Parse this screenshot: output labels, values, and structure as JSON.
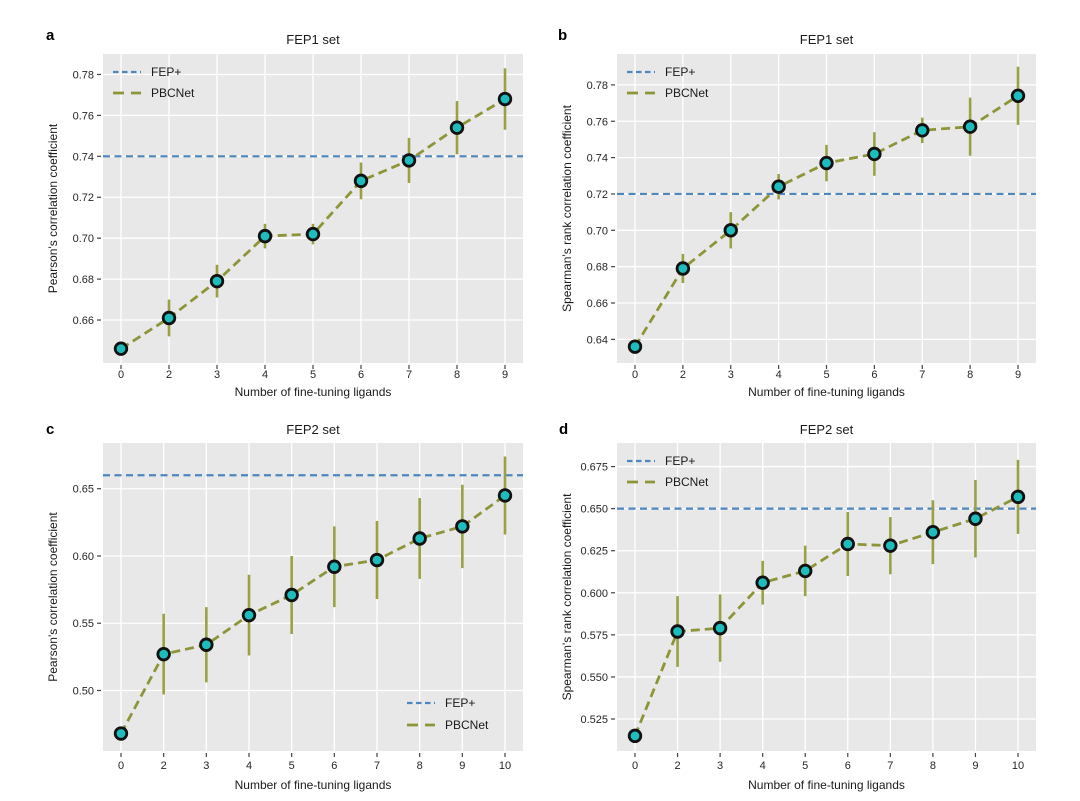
{
  "colors": {
    "fep_line": "#4e86bf",
    "pbcnet_line": "#8e9538",
    "error_bar": "#9aa145",
    "marker_fill": "#1ebdbd",
    "marker_edge": "#111111",
    "plot_bg": "#e8e8e8",
    "grid": "#ffffff",
    "tick": "#444444",
    "text": "#1a1a1a"
  },
  "chart_data": [
    {
      "type": "line",
      "panel_label": "a",
      "title": "FEP1 set",
      "xlabel": "Number of fine-tuning ligands",
      "ylabel": "Pearson's correlation coefficient",
      "x": [
        0,
        2,
        3,
        4,
        5,
        6,
        7,
        8,
        9
      ],
      "xtick_labels": [
        "0",
        "2",
        "3",
        "4",
        "5",
        "6",
        "7",
        "8",
        "9"
      ],
      "yticks": [
        0.66,
        0.68,
        0.7,
        0.72,
        0.74,
        0.76,
        0.78
      ],
      "ytick_labels": [
        "0.66",
        "0.68",
        "0.70",
        "0.72",
        "0.74",
        "0.76",
        "0.78"
      ],
      "ylim": [
        0.639,
        0.79
      ],
      "grid": true,
      "legend_position": "top-left",
      "series": [
        {
          "name": "FEP+",
          "type": "reference-line",
          "value": 0.74
        },
        {
          "name": "PBCNet",
          "type": "line-markers-errorbars",
          "values": [
            0.646,
            0.661,
            0.679,
            0.701,
            0.702,
            0.728,
            0.738,
            0.754,
            0.768
          ],
          "errors": [
            0,
            0.009,
            0.008,
            0.006,
            0.005,
            0.009,
            0.011,
            0.013,
            0.015
          ]
        }
      ]
    },
    {
      "type": "line",
      "panel_label": "b",
      "title": "FEP1 set",
      "xlabel": "Number of fine-tuning ligands",
      "ylabel": "Spearman's rank correlation coefficient",
      "x": [
        0,
        2,
        3,
        4,
        5,
        6,
        7,
        8,
        9
      ],
      "xtick_labels": [
        "0",
        "2",
        "3",
        "4",
        "5",
        "6",
        "7",
        "8",
        "9"
      ],
      "yticks": [
        0.64,
        0.66,
        0.68,
        0.7,
        0.72,
        0.74,
        0.76,
        0.78
      ],
      "ytick_labels": [
        "0.64",
        "0.66",
        "0.68",
        "0.70",
        "0.72",
        "0.74",
        "0.76",
        "0.78"
      ],
      "ylim": [
        0.627,
        0.797
      ],
      "grid": true,
      "legend_position": "top-left",
      "series": [
        {
          "name": "FEP+",
          "type": "reference-line",
          "value": 0.72
        },
        {
          "name": "PBCNet",
          "type": "line-markers-errorbars",
          "values": [
            0.636,
            0.679,
            0.7,
            0.724,
            0.737,
            0.742,
            0.755,
            0.757,
            0.774
          ],
          "errors": [
            0,
            0.008,
            0.01,
            0.007,
            0.01,
            0.012,
            0.007,
            0.016,
            0.016
          ]
        }
      ]
    },
    {
      "type": "line",
      "panel_label": "c",
      "title": "FEP2 set",
      "xlabel": "Number of fine-tuning ligands",
      "ylabel": "Pearson's correlation coefficient",
      "x": [
        0,
        2,
        3,
        4,
        5,
        6,
        7,
        8,
        9,
        10
      ],
      "xtick_labels": [
        "0",
        "2",
        "3",
        "4",
        "5",
        "6",
        "7",
        "8",
        "9",
        "10"
      ],
      "yticks": [
        0.5,
        0.55,
        0.6,
        0.65
      ],
      "ytick_labels": [
        "0.50",
        "0.55",
        "0.60",
        "0.65"
      ],
      "ylim": [
        0.455,
        0.684
      ],
      "grid": true,
      "legend_position": "bottom-right",
      "series": [
        {
          "name": "FEP+",
          "type": "reference-line",
          "value": 0.66
        },
        {
          "name": "PBCNet",
          "type": "line-markers-errorbars",
          "values": [
            0.468,
            0.527,
            0.534,
            0.556,
            0.571,
            0.592,
            0.597,
            0.613,
            0.622,
            0.645
          ],
          "errors": [
            0,
            0.03,
            0.028,
            0.03,
            0.029,
            0.03,
            0.029,
            0.03,
            0.031,
            0.029
          ]
        }
      ]
    },
    {
      "type": "line",
      "panel_label": "d",
      "title": "FEP2 set",
      "xlabel": "Number of fine-tuning ligands",
      "ylabel": "Spearman's rank correlation coefficient",
      "x": [
        0,
        2,
        3,
        4,
        5,
        6,
        7,
        8,
        9,
        10
      ],
      "xtick_labels": [
        "0",
        "2",
        "3",
        "4",
        "5",
        "6",
        "7",
        "8",
        "9",
        "10"
      ],
      "yticks": [
        0.525,
        0.55,
        0.575,
        0.6,
        0.625,
        0.65,
        0.675
      ],
      "ytick_labels": [
        "0.525",
        "0.550",
        "0.575",
        "0.600",
        "0.625",
        "0.650",
        "0.675"
      ],
      "ylim": [
        0.506,
        0.689
      ],
      "grid": true,
      "legend_position": "top-left",
      "series": [
        {
          "name": "FEP+",
          "type": "reference-line",
          "value": 0.65
        },
        {
          "name": "PBCNet",
          "type": "line-markers-errorbars",
          "values": [
            0.515,
            0.577,
            0.579,
            0.606,
            0.613,
            0.629,
            0.628,
            0.636,
            0.644,
            0.657
          ],
          "errors": [
            0,
            0.021,
            0.02,
            0.013,
            0.015,
            0.019,
            0.017,
            0.019,
            0.023,
            0.022
          ]
        }
      ]
    }
  ]
}
